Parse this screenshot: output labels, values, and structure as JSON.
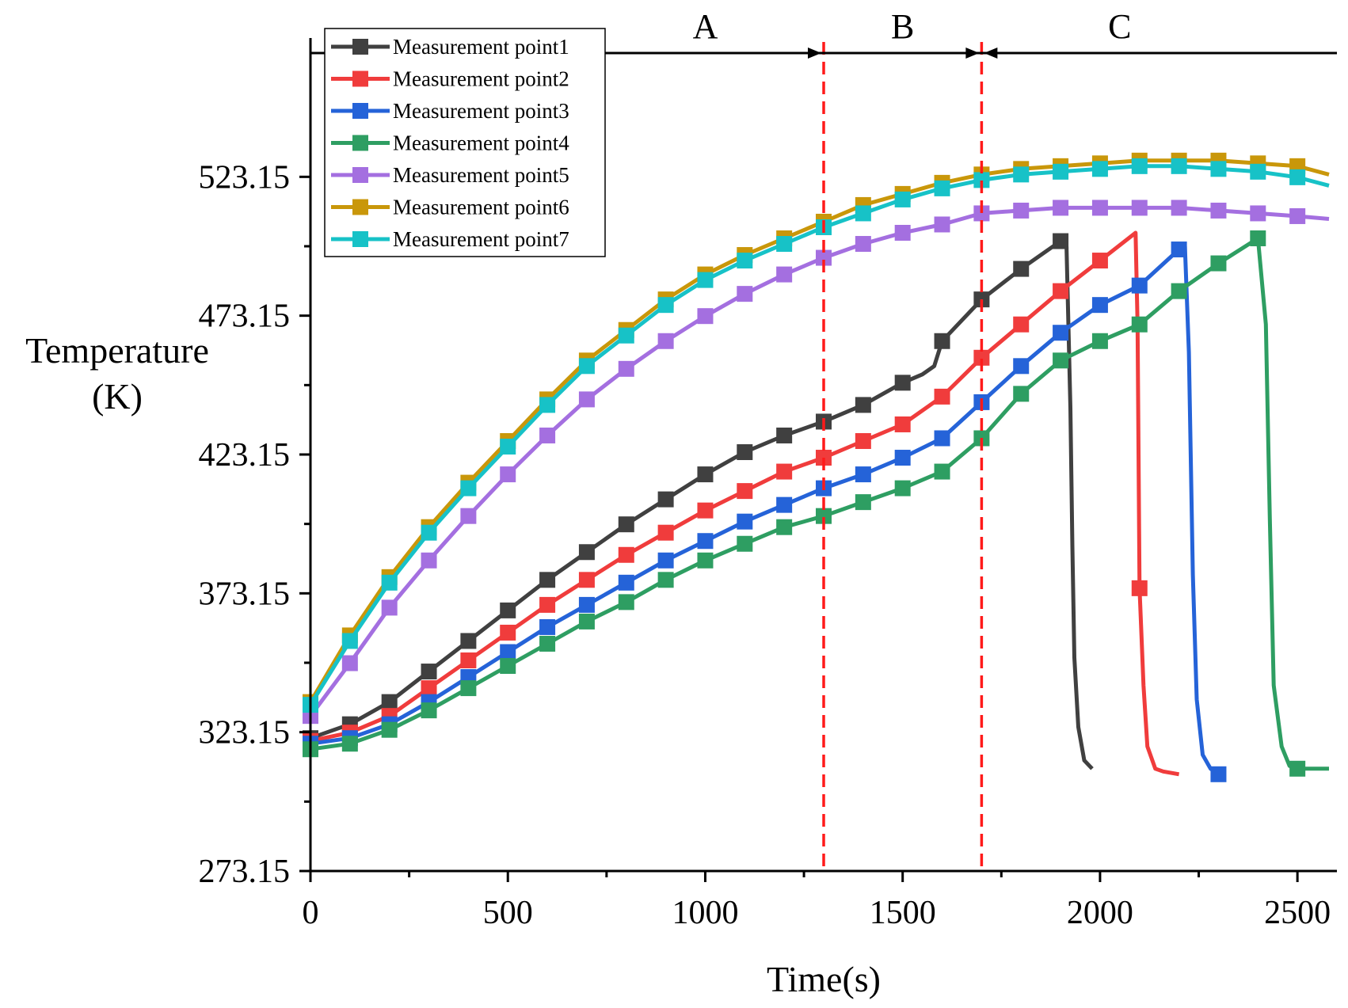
{
  "chart_data": {
    "type": "line",
    "xlabel": "Time(s)",
    "ylabel_lines": [
      "Temperature",
      "(K)"
    ],
    "xlim": [
      0,
      2600
    ],
    "ylim": [
      273.15,
      573.15
    ],
    "xticks": [
      0,
      500,
      1000,
      1500,
      2000,
      2500
    ],
    "yticks": [
      273.15,
      323.15,
      373.15,
      423.15,
      473.15,
      523.15
    ],
    "ytick_labels": [
      "273.15",
      "323.15",
      "373.15",
      "423.15",
      "473.15",
      "523.15"
    ],
    "legend_position": "top-left",
    "regions": [
      {
        "label": "A",
        "from": 0,
        "to": 1300
      },
      {
        "label": "B",
        "from": 1300,
        "to": 1700
      },
      {
        "label": "C",
        "from": 1700,
        "to": 2600
      }
    ],
    "region_dividers": [
      1300,
      1700
    ],
    "divider_color": "#ff1a1a",
    "series": [
      {
        "name": "Measurement point1",
        "color": "#404040",
        "x": [
          0,
          100,
          200,
          300,
          400,
          500,
          600,
          700,
          800,
          900,
          1000,
          1100,
          1200,
          1300,
          1400,
          1500,
          1550,
          1580,
          1600,
          1700,
          1800,
          1900,
          1915,
          1925,
          1930,
          1935,
          1945,
          1960,
          1980
        ],
        "y": [
          321,
          326,
          334,
          345,
          356,
          367,
          378,
          388,
          398,
          407,
          416,
          424,
          430,
          435,
          441,
          449,
          452,
          455,
          464,
          479,
          490,
          500,
          498,
          440,
          390,
          350,
          325,
          313,
          310
        ],
        "marker_x": [
          0,
          100,
          200,
          300,
          400,
          500,
          600,
          700,
          800,
          900,
          1000,
          1100,
          1200,
          1300,
          1400,
          1500,
          1600,
          1700,
          1800,
          1900
        ]
      },
      {
        "name": "Measurement point2",
        "color": "#f03c3c",
        "x": [
          0,
          100,
          200,
          300,
          400,
          500,
          600,
          700,
          800,
          900,
          1000,
          1100,
          1200,
          1300,
          1400,
          1500,
          1600,
          1700,
          1800,
          1900,
          2000,
          2090,
          2095,
          2100,
          2110,
          2120,
          2140,
          2160,
          2200
        ],
        "y": [
          320,
          323,
          329,
          339,
          349,
          359,
          369,
          378,
          387,
          395,
          403,
          410,
          417,
          422,
          428,
          434,
          444,
          458,
          470,
          482,
          493,
          503,
          470,
          375,
          340,
          318,
          310,
          309,
          308
        ],
        "marker_x": [
          0,
          100,
          200,
          300,
          400,
          500,
          600,
          700,
          800,
          900,
          1000,
          1100,
          1200,
          1300,
          1400,
          1500,
          1600,
          1700,
          1800,
          1900,
          2000,
          2100
        ]
      },
      {
        "name": "Measurement point3",
        "color": "#2563d8",
        "x": [
          0,
          100,
          200,
          300,
          400,
          500,
          600,
          700,
          800,
          900,
          1000,
          1100,
          1200,
          1300,
          1400,
          1500,
          1600,
          1700,
          1800,
          1900,
          2000,
          2100,
          2200,
          2215,
          2225,
          2235,
          2245,
          2260,
          2280,
          2300
        ],
        "y": [
          319,
          321,
          326,
          334,
          343,
          352,
          361,
          369,
          377,
          385,
          392,
          399,
          405,
          411,
          416,
          422,
          429,
          442,
          455,
          467,
          477,
          484,
          497,
          498,
          460,
          380,
          335,
          315,
          310,
          308
        ],
        "marker_x": [
          0,
          100,
          200,
          300,
          400,
          500,
          600,
          700,
          800,
          900,
          1000,
          1100,
          1200,
          1300,
          1400,
          1500,
          1600,
          1700,
          1800,
          1900,
          2000,
          2100,
          2200,
          2300
        ]
      },
      {
        "name": "Measurement point4",
        "color": "#2e9e62",
        "x": [
          0,
          100,
          200,
          300,
          400,
          500,
          600,
          700,
          800,
          900,
          1000,
          1100,
          1200,
          1300,
          1400,
          1500,
          1600,
          1700,
          1800,
          1900,
          2000,
          2100,
          2200,
          2300,
          2400,
          2420,
          2430,
          2440,
          2460,
          2480,
          2500,
          2580
        ],
        "y": [
          317,
          319,
          324,
          331,
          339,
          347,
          355,
          363,
          370,
          378,
          385,
          391,
          397,
          401,
          406,
          411,
          417,
          429,
          445,
          457,
          464,
          470,
          482,
          492,
          501,
          470,
          400,
          340,
          318,
          311,
          310,
          310
        ],
        "marker_x": [
          0,
          100,
          200,
          300,
          400,
          500,
          600,
          700,
          800,
          900,
          1000,
          1100,
          1200,
          1300,
          1400,
          1500,
          1600,
          1700,
          1800,
          1900,
          2000,
          2100,
          2200,
          2300,
          2400,
          2500
        ]
      },
      {
        "name": "Measurement point5",
        "color": "#a46fe0",
        "x": [
          0,
          100,
          200,
          300,
          400,
          500,
          600,
          700,
          800,
          900,
          1000,
          1100,
          1200,
          1300,
          1400,
          1500,
          1600,
          1700,
          1800,
          1900,
          2000,
          2100,
          2200,
          2300,
          2400,
          2500,
          2580
        ],
        "y": [
          329,
          348,
          368,
          385,
          401,
          416,
          430,
          443,
          454,
          464,
          473,
          481,
          488,
          494,
          499,
          503,
          506,
          510,
          511,
          512,
          512,
          512,
          512,
          511,
          510,
          509,
          508
        ],
        "marker_x": [
          0,
          100,
          200,
          300,
          400,
          500,
          600,
          700,
          800,
          900,
          1000,
          1100,
          1200,
          1300,
          1400,
          1500,
          1600,
          1700,
          1800,
          1900,
          2000,
          2100,
          2200,
          2300,
          2400,
          2500
        ]
      },
      {
        "name": "Measurement point6",
        "color": "#c9970a",
        "x": [
          0,
          100,
          200,
          300,
          400,
          500,
          600,
          700,
          800,
          900,
          1000,
          1100,
          1200,
          1300,
          1400,
          1500,
          1600,
          1700,
          1800,
          1900,
          2000,
          2100,
          2200,
          2300,
          2400,
          2500,
          2580
        ],
        "y": [
          334,
          358,
          379,
          397,
          413,
          428,
          443,
          457,
          468,
          479,
          488,
          495,
          501,
          507,
          513,
          517,
          521,
          524,
          526,
          527,
          528,
          529,
          529,
          529,
          528,
          527,
          524
        ],
        "marker_x": [
          0,
          100,
          200,
          300,
          400,
          500,
          600,
          700,
          800,
          900,
          1000,
          1100,
          1200,
          1300,
          1400,
          1500,
          1600,
          1700,
          1800,
          1900,
          2000,
          2100,
          2200,
          2300,
          2400,
          2500
        ]
      },
      {
        "name": "Measurement point7",
        "color": "#17c2c7",
        "x": [
          0,
          100,
          200,
          300,
          400,
          500,
          600,
          700,
          800,
          900,
          1000,
          1100,
          1200,
          1300,
          1400,
          1500,
          1600,
          1700,
          1800,
          1900,
          2000,
          2100,
          2200,
          2300,
          2400,
          2500,
          2580
        ],
        "y": [
          333,
          356,
          377,
          395,
          411,
          426,
          441,
          455,
          466,
          477,
          486,
          493,
          499,
          505,
          510,
          515,
          519,
          522,
          524,
          525,
          526,
          527,
          527,
          526,
          525,
          523,
          520
        ],
        "marker_x": [
          0,
          100,
          200,
          300,
          400,
          500,
          600,
          700,
          800,
          900,
          1000,
          1100,
          1200,
          1300,
          1400,
          1500,
          1600,
          1700,
          1800,
          1900,
          2000,
          2100,
          2200,
          2300,
          2400,
          2500
        ]
      }
    ]
  }
}
